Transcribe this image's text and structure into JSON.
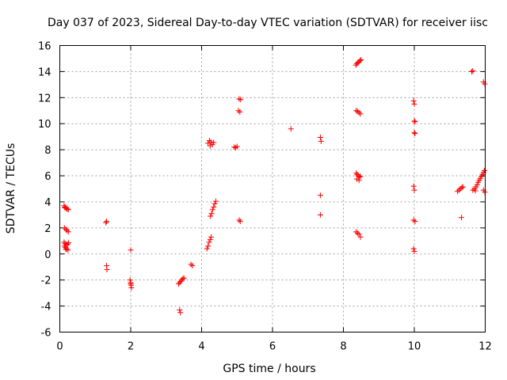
{
  "chart_data": {
    "type": "scatter",
    "title": "Day 037 of 2023, Sidereal Day-to-day VTEC variation (SDTVAR) for receiver iisc",
    "xlabel": "GPS time / hours",
    "ylabel": "SDTVAR / TECUs",
    "xlim": [
      0,
      12
    ],
    "ylim": [
      -6,
      16
    ],
    "xticks": [
      0,
      2,
      4,
      6,
      8,
      10,
      12
    ],
    "yticks": [
      -6,
      -4,
      -2,
      0,
      2,
      4,
      6,
      8,
      10,
      12,
      14,
      16
    ],
    "grid": true,
    "marker": "plus",
    "color": "#ff0000",
    "series": [
      {
        "name": "SDTVAR",
        "points": [
          [
            0.12,
            3.7
          ],
          [
            0.15,
            3.6
          ],
          [
            0.18,
            3.5
          ],
          [
            0.21,
            3.45
          ],
          [
            0.24,
            3.4
          ],
          [
            0.14,
            3.55
          ],
          [
            0.13,
            2.0
          ],
          [
            0.17,
            1.9
          ],
          [
            0.2,
            1.8
          ],
          [
            0.24,
            1.7
          ],
          [
            0.12,
            0.9
          ],
          [
            0.15,
            0.8
          ],
          [
            0.18,
            0.7
          ],
          [
            0.22,
            0.75
          ],
          [
            0.25,
            0.85
          ],
          [
            0.13,
            0.6
          ],
          [
            0.16,
            0.5
          ],
          [
            0.19,
            0.4
          ],
          [
            0.23,
            0.3
          ],
          [
            0.17,
            0.35
          ],
          [
            1.3,
            2.4
          ],
          [
            1.32,
            2.5
          ],
          [
            1.32,
            -0.9
          ],
          [
            1.33,
            -1.2
          ],
          [
            2.0,
            0.3
          ],
          [
            1.98,
            -2.0
          ],
          [
            2.0,
            -2.2
          ],
          [
            2.01,
            -2.4
          ],
          [
            2.02,
            -2.6
          ],
          [
            2.0,
            -2.3
          ],
          [
            3.38,
            -4.3
          ],
          [
            3.4,
            -4.5
          ],
          [
            3.35,
            -2.3
          ],
          [
            3.38,
            -2.2
          ],
          [
            3.41,
            -2.1
          ],
          [
            3.44,
            -2.0
          ],
          [
            3.47,
            -1.9
          ],
          [
            3.5,
            -1.85
          ],
          [
            3.7,
            -0.8
          ],
          [
            3.74,
            -0.9
          ],
          [
            4.15,
            0.4
          ],
          [
            4.18,
            0.6
          ],
          [
            4.21,
            0.9
          ],
          [
            4.24,
            1.1
          ],
          [
            4.27,
            1.3
          ],
          [
            4.25,
            2.9
          ],
          [
            4.28,
            3.1
          ],
          [
            4.31,
            3.4
          ],
          [
            4.34,
            3.6
          ],
          [
            4.37,
            3.85
          ],
          [
            4.4,
            4.05
          ],
          [
            4.18,
            8.5
          ],
          [
            4.22,
            8.7
          ],
          [
            4.26,
            8.6
          ],
          [
            4.3,
            8.4
          ],
          [
            4.34,
            8.55
          ],
          [
            4.24,
            8.3
          ],
          [
            4.92,
            8.2
          ],
          [
            4.96,
            8.15
          ],
          [
            5.0,
            8.25
          ],
          [
            5.06,
            2.6
          ],
          [
            5.09,
            2.5
          ],
          [
            5.04,
            11.0
          ],
          [
            5.08,
            10.9
          ],
          [
            5.06,
            11.9
          ],
          [
            5.1,
            11.85
          ],
          [
            6.52,
            9.6
          ],
          [
            7.35,
            8.95
          ],
          [
            7.37,
            8.65
          ],
          [
            7.35,
            4.5
          ],
          [
            7.35,
            3.0
          ],
          [
            8.35,
            14.5
          ],
          [
            8.38,
            14.6
          ],
          [
            8.41,
            14.7
          ],
          [
            8.44,
            14.75
          ],
          [
            8.47,
            14.85
          ],
          [
            8.5,
            14.9
          ],
          [
            8.36,
            11.0
          ],
          [
            8.4,
            10.95
          ],
          [
            8.44,
            10.85
          ],
          [
            8.48,
            10.75
          ],
          [
            8.36,
            6.2
          ],
          [
            8.39,
            6.1
          ],
          [
            8.42,
            6.0
          ],
          [
            8.45,
            5.9
          ],
          [
            8.48,
            5.95
          ],
          [
            8.38,
            5.75
          ],
          [
            8.44,
            5.65
          ],
          [
            8.36,
            1.7
          ],
          [
            8.4,
            1.6
          ],
          [
            8.44,
            1.5
          ],
          [
            8.48,
            1.3
          ],
          [
            9.98,
            11.75
          ],
          [
            10.0,
            11.5
          ],
          [
            10.0,
            10.2
          ],
          [
            10.02,
            10.15
          ],
          [
            10.0,
            9.3
          ],
          [
            10.02,
            9.25
          ],
          [
            9.98,
            5.2
          ],
          [
            10.0,
            4.9
          ],
          [
            9.98,
            2.6
          ],
          [
            10.02,
            2.5
          ],
          [
            9.98,
            0.4
          ],
          [
            10.0,
            0.2
          ],
          [
            11.22,
            4.8
          ],
          [
            11.26,
            4.9
          ],
          [
            11.3,
            5.0
          ],
          [
            11.34,
            5.1
          ],
          [
            11.37,
            5.15
          ],
          [
            11.33,
            2.8
          ],
          [
            11.62,
            14.0
          ],
          [
            11.65,
            14.05
          ],
          [
            11.95,
            13.2
          ],
          [
            11.99,
            13.05
          ],
          [
            11.65,
            4.9
          ],
          [
            11.7,
            5.0
          ],
          [
            11.74,
            5.15
          ],
          [
            11.77,
            5.3
          ],
          [
            11.8,
            5.5
          ],
          [
            11.83,
            5.65
          ],
          [
            11.86,
            5.8
          ],
          [
            11.89,
            5.95
          ],
          [
            11.92,
            6.1
          ],
          [
            11.95,
            6.25
          ],
          [
            11.98,
            6.4
          ],
          [
            11.72,
            4.85
          ],
          [
            11.95,
            4.9
          ],
          [
            11.99,
            4.75
          ]
        ]
      }
    ]
  }
}
